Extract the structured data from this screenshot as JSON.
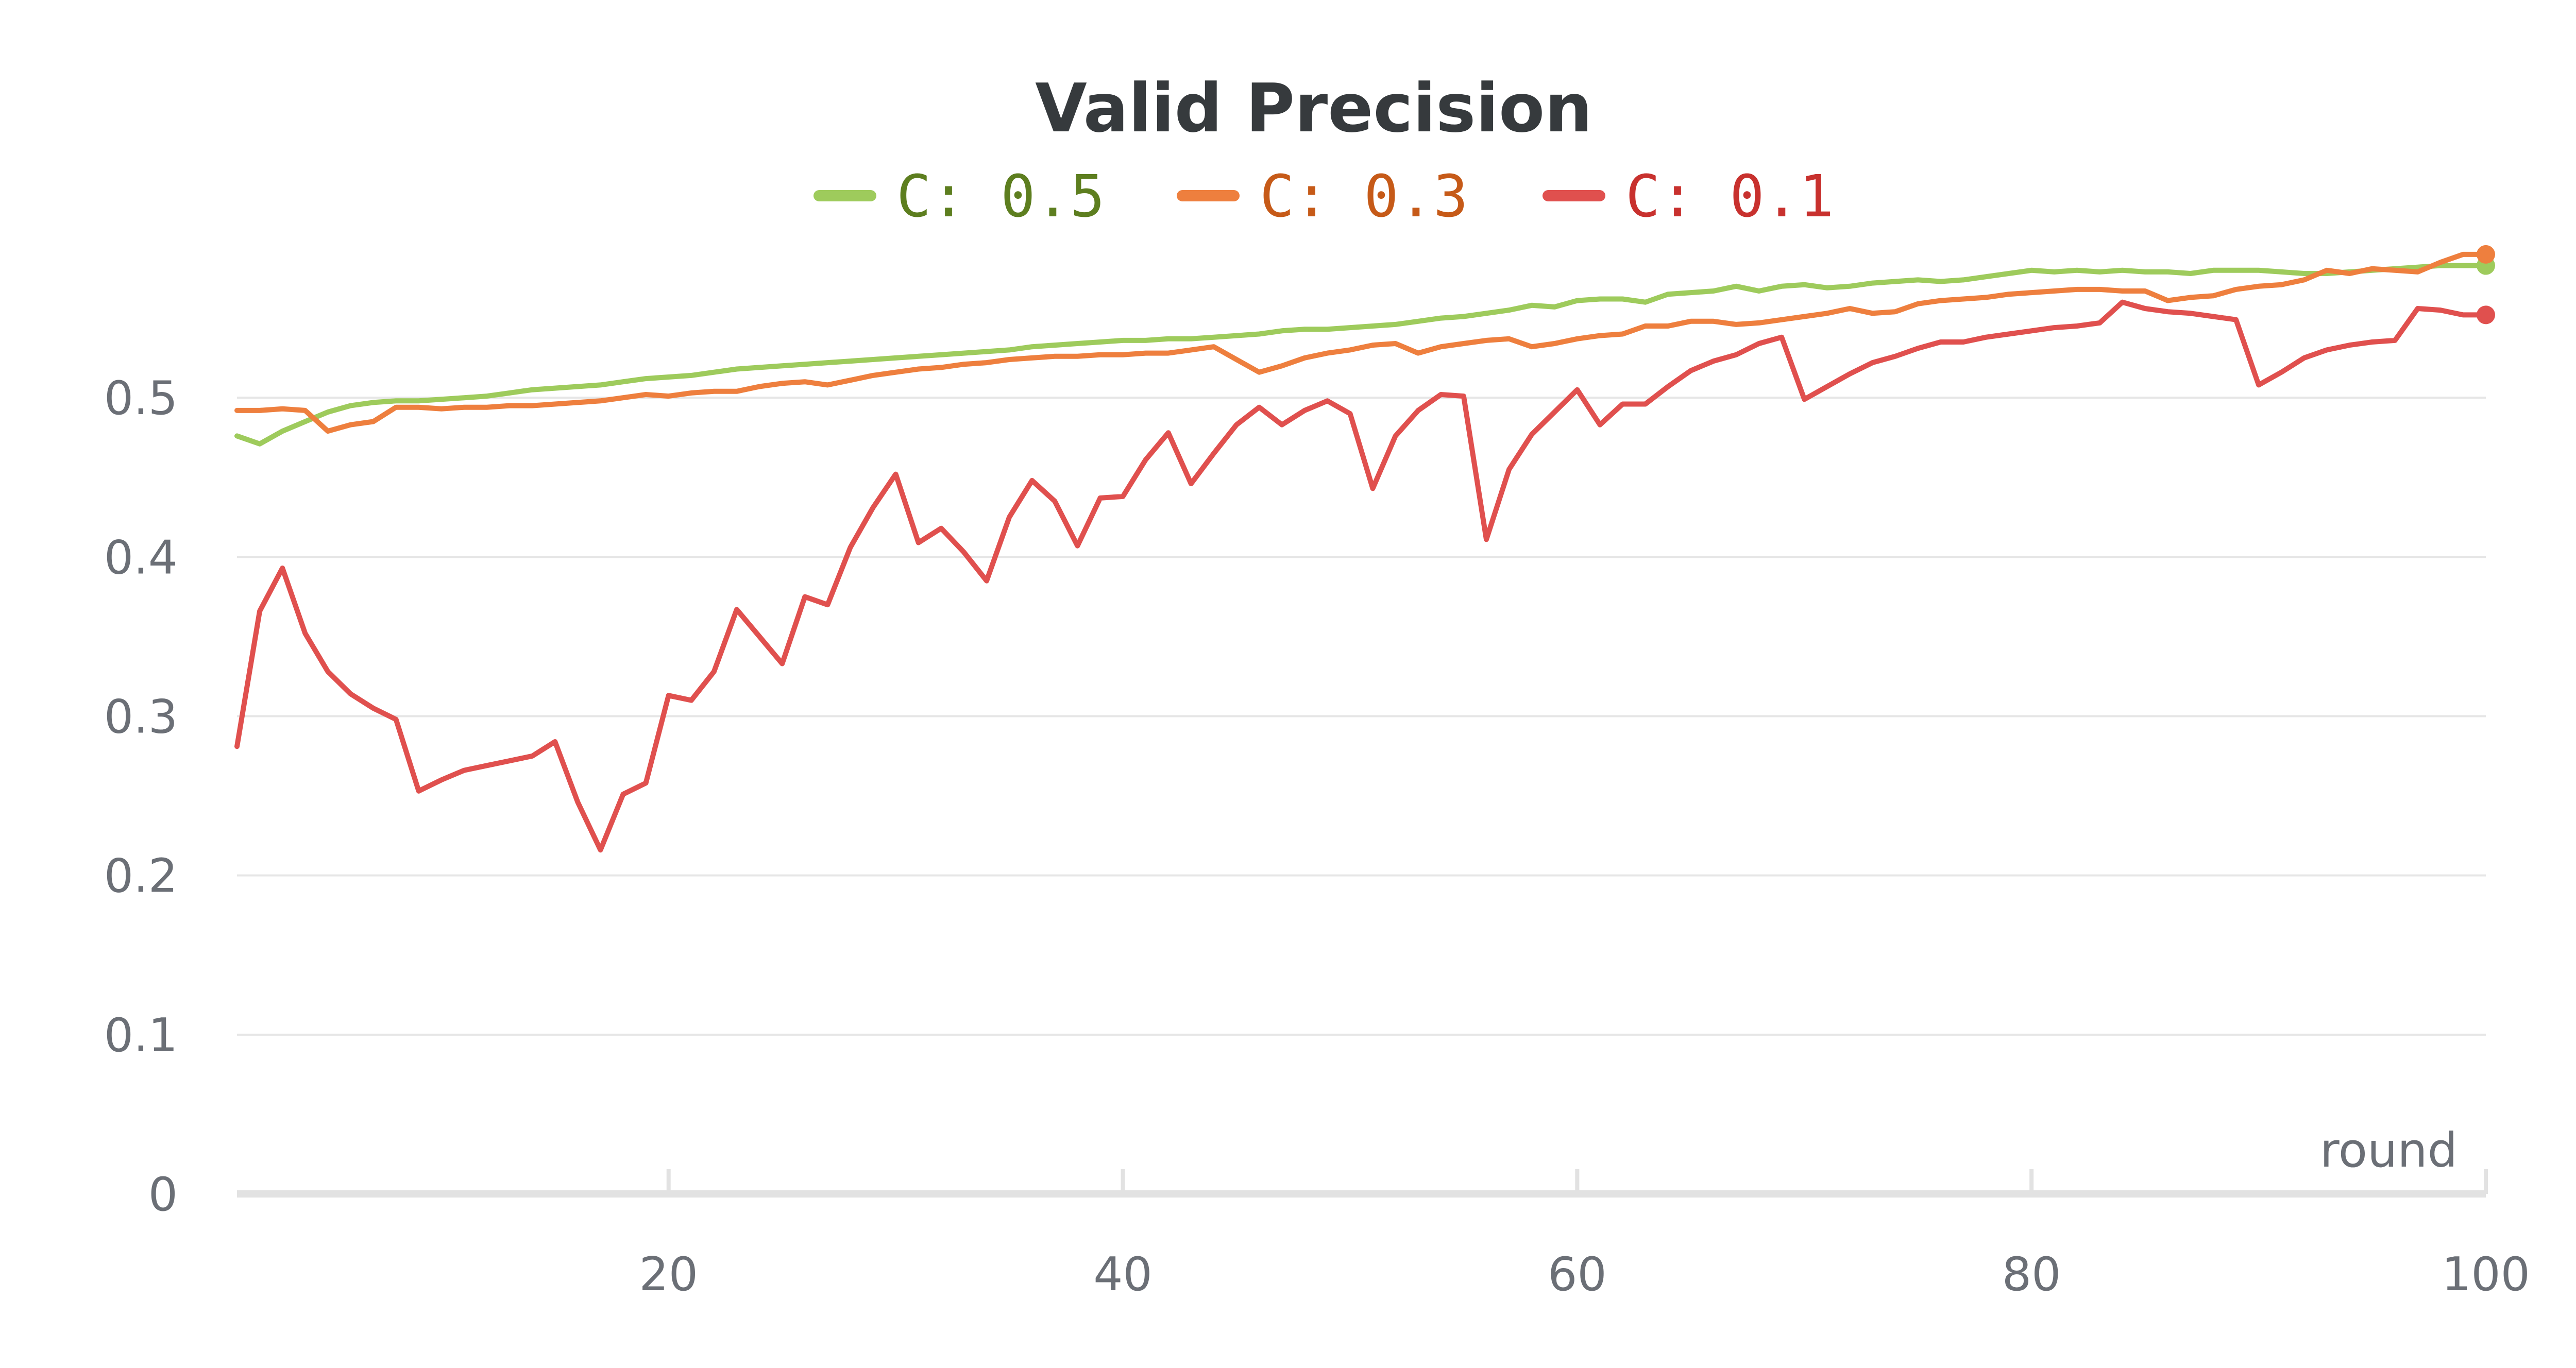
{
  "chart_data": {
    "type": "line",
    "title": "Valid Precision",
    "xlabel": "round",
    "ylabel": "",
    "xlim": [
      1,
      100
    ],
    "ylim": [
      0,
      0.6
    ],
    "xticks": [
      "20",
      "40",
      "60",
      "80",
      "100"
    ],
    "yticks": [
      "0",
      "0.1",
      "0.2",
      "0.3",
      "0.4",
      "0.5"
    ],
    "grid": true,
    "legend_position": "top-center",
    "series": [
      {
        "name": "C: 0.5",
        "color": "#9ecb5c",
        "text_color": "#5d7e1f",
        "x": [
          1,
          2,
          3,
          4,
          5,
          6,
          7,
          8,
          9,
          10,
          11,
          12,
          13,
          14,
          15,
          16,
          17,
          18,
          19,
          20,
          21,
          22,
          23,
          24,
          25,
          26,
          27,
          28,
          29,
          30,
          31,
          32,
          33,
          34,
          35,
          36,
          37,
          38,
          39,
          40,
          41,
          42,
          43,
          44,
          45,
          46,
          47,
          48,
          49,
          50,
          51,
          52,
          53,
          54,
          55,
          56,
          57,
          58,
          59,
          60,
          61,
          62,
          63,
          64,
          65,
          66,
          67,
          68,
          69,
          70,
          71,
          72,
          73,
          74,
          75,
          76,
          77,
          78,
          79,
          80,
          81,
          82,
          83,
          84,
          85,
          86,
          87,
          88,
          89,
          90,
          91,
          92,
          93,
          94,
          95,
          96,
          97,
          98,
          99,
          100
        ],
        "values": [
          0.476,
          0.471,
          0.479,
          0.485,
          0.491,
          0.495,
          0.497,
          0.498,
          0.498,
          0.499,
          0.5,
          0.501,
          0.503,
          0.505,
          0.506,
          0.507,
          0.508,
          0.51,
          0.512,
          0.513,
          0.514,
          0.516,
          0.518,
          0.519,
          0.52,
          0.521,
          0.522,
          0.523,
          0.524,
          0.525,
          0.526,
          0.527,
          0.528,
          0.529,
          0.53,
          0.532,
          0.533,
          0.534,
          0.535,
          0.536,
          0.536,
          0.537,
          0.537,
          0.538,
          0.539,
          0.54,
          0.542,
          0.543,
          0.543,
          0.544,
          0.545,
          0.546,
          0.548,
          0.55,
          0.551,
          0.553,
          0.555,
          0.558,
          0.557,
          0.561,
          0.562,
          0.562,
          0.56,
          0.565,
          0.566,
          0.567,
          0.57,
          0.567,
          0.57,
          0.571,
          0.569,
          0.57,
          0.572,
          0.573,
          0.574,
          0.573,
          0.574,
          0.576,
          0.578,
          0.58,
          0.579,
          0.58,
          0.579,
          0.58,
          0.579,
          0.579,
          0.578,
          0.58,
          0.58,
          0.58,
          0.579,
          0.578,
          0.578,
          0.579,
          0.58,
          0.581,
          0.582,
          0.583,
          0.583,
          0.583
        ]
      },
      {
        "name": "C: 0.3",
        "color": "#ee7f3e",
        "text_color": "#c65a18",
        "x": [
          1,
          2,
          3,
          4,
          5,
          6,
          7,
          8,
          9,
          10,
          11,
          12,
          13,
          14,
          15,
          16,
          17,
          18,
          19,
          20,
          21,
          22,
          23,
          24,
          25,
          26,
          27,
          28,
          29,
          30,
          31,
          32,
          33,
          34,
          35,
          36,
          37,
          38,
          39,
          40,
          41,
          42,
          43,
          44,
          45,
          46,
          47,
          48,
          49,
          50,
          51,
          52,
          53,
          54,
          55,
          56,
          57,
          58,
          59,
          60,
          61,
          62,
          63,
          64,
          65,
          66,
          67,
          68,
          69,
          70,
          71,
          72,
          73,
          74,
          75,
          76,
          77,
          78,
          79,
          80,
          81,
          82,
          83,
          84,
          85,
          86,
          87,
          88,
          89,
          90,
          91,
          92,
          93,
          94,
          95,
          96,
          97,
          98,
          99,
          100
        ],
        "values": [
          0.492,
          0.492,
          0.493,
          0.492,
          0.479,
          0.483,
          0.485,
          0.494,
          0.494,
          0.493,
          0.494,
          0.494,
          0.495,
          0.495,
          0.496,
          0.497,
          0.498,
          0.5,
          0.502,
          0.501,
          0.503,
          0.504,
          0.504,
          0.507,
          0.509,
          0.51,
          0.508,
          0.511,
          0.514,
          0.516,
          0.518,
          0.519,
          0.521,
          0.522,
          0.524,
          0.525,
          0.526,
          0.526,
          0.527,
          0.527,
          0.528,
          0.528,
          0.53,
          0.532,
          0.524,
          0.516,
          0.52,
          0.525,
          0.528,
          0.53,
          0.533,
          0.534,
          0.528,
          0.532,
          0.534,
          0.536,
          0.537,
          0.532,
          0.534,
          0.537,
          0.539,
          0.54,
          0.545,
          0.545,
          0.548,
          0.548,
          0.546,
          0.547,
          0.549,
          0.551,
          0.553,
          0.556,
          0.553,
          0.554,
          0.559,
          0.561,
          0.562,
          0.563,
          0.565,
          0.566,
          0.567,
          0.568,
          0.568,
          0.567,
          0.567,
          0.561,
          0.563,
          0.564,
          0.568,
          0.57,
          0.571,
          0.574,
          0.58,
          0.578,
          0.581,
          0.58,
          0.579,
          0.585,
          0.59,
          0.59
        ]
      },
      {
        "name": "C: 0.1",
        "color": "#e0504e",
        "text_color": "#c8312e",
        "x": [
          1,
          2,
          3,
          4,
          5,
          6,
          7,
          8,
          9,
          10,
          11,
          12,
          13,
          14,
          15,
          16,
          17,
          18,
          19,
          20,
          21,
          22,
          23,
          24,
          25,
          26,
          27,
          28,
          29,
          30,
          31,
          32,
          33,
          34,
          35,
          36,
          37,
          38,
          39,
          40,
          41,
          42,
          43,
          44,
          45,
          46,
          47,
          48,
          49,
          50,
          51,
          52,
          53,
          54,
          55,
          56,
          57,
          58,
          59,
          60,
          61,
          62,
          63,
          64,
          65,
          66,
          67,
          68,
          69,
          70,
          71,
          72,
          73,
          74,
          75,
          76,
          77,
          78,
          79,
          80,
          81,
          82,
          83,
          84,
          85,
          86,
          87,
          88,
          89,
          90,
          91,
          92,
          93,
          94,
          95,
          96,
          97,
          98,
          99,
          100
        ],
        "values": [
          0.281,
          0.366,
          0.393,
          0.352,
          0.328,
          0.314,
          0.305,
          0.298,
          0.253,
          0.26,
          0.266,
          0.269,
          0.272,
          0.275,
          0.284,
          0.246,
          0.216,
          0.251,
          0.258,
          0.313,
          0.31,
          0.328,
          0.367,
          0.35,
          0.333,
          0.375,
          0.37,
          0.406,
          0.431,
          0.452,
          0.409,
          0.418,
          0.403,
          0.385,
          0.425,
          0.448,
          0.435,
          0.407,
          0.437,
          0.438,
          0.461,
          0.478,
          0.446,
          0.465,
          0.483,
          0.494,
          0.483,
          0.492,
          0.498,
          0.49,
          0.443,
          0.476,
          0.492,
          0.502,
          0.501,
          0.411,
          0.455,
          0.477,
          0.491,
          0.505,
          0.483,
          0.496,
          0.496,
          0.507,
          0.517,
          0.523,
          0.527,
          0.534,
          0.538,
          0.499,
          0.507,
          0.515,
          0.522,
          0.526,
          0.531,
          0.535,
          0.535,
          0.538,
          0.54,
          0.542,
          0.544,
          0.545,
          0.547,
          0.56,
          0.556,
          0.554,
          0.553,
          0.551,
          0.549,
          0.508,
          0.516,
          0.525,
          0.53,
          0.533,
          0.535,
          0.536,
          0.556,
          0.555,
          0.552,
          0.552
        ]
      }
    ]
  }
}
